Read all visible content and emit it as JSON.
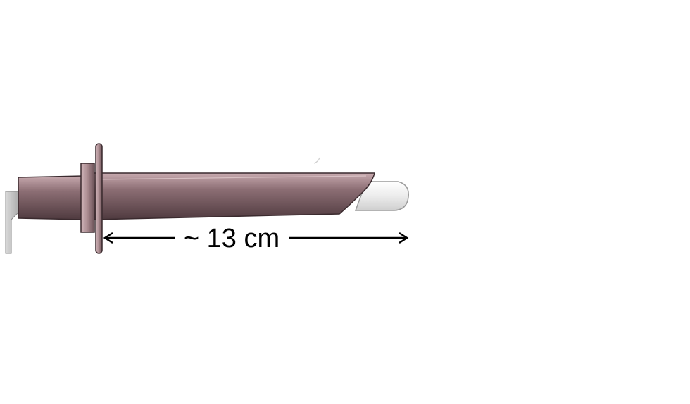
{
  "diagram": {
    "measurement_label": "~ 13 cm"
  },
  "colors": {
    "barrel_dark": "#4f3a3f",
    "barrel_mid": "#8c6e74",
    "barrel_light": "#c7a9ae",
    "tip": "#e3e3e3",
    "handle": "#c9c9c9",
    "outline": "#3a2a2e",
    "arrow": "#000000"
  }
}
